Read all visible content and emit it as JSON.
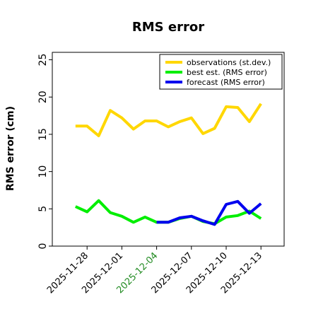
{
  "chart_data": {
    "type": "line",
    "title": "RMS error",
    "xlabel": "",
    "ylabel": "RMS error (cm)",
    "ylim": [
      0,
      26
    ],
    "yticks": [
      0,
      5,
      10,
      15,
      20,
      25
    ],
    "xlim": [
      "2025-11-25",
      "2025-12-15"
    ],
    "xticks": [
      "2025-11-28",
      "2025-12-01",
      "2025-12-04",
      "2025-12-07",
      "2025-12-10",
      "2025-12-13"
    ],
    "highlight_xtick": "2025-12-04",
    "highlight_color": "#228B22",
    "grid": false,
    "legend_position": "top-right",
    "series": [
      {
        "name": "observations (st.dev.)",
        "color": "#FFD700",
        "x": [
          "2025-11-27",
          "2025-11-28",
          "2025-11-29",
          "2025-11-30",
          "2025-12-01",
          "2025-12-02",
          "2025-12-03",
          "2025-12-04",
          "2025-12-05",
          "2025-12-06",
          "2025-12-07",
          "2025-12-08",
          "2025-12-09",
          "2025-12-10",
          "2025-12-11",
          "2025-12-12",
          "2025-12-13"
        ],
        "y": [
          16.1,
          16.1,
          14.8,
          18.2,
          17.2,
          15.7,
          16.8,
          16.8,
          16.0,
          16.7,
          17.2,
          15.1,
          15.8,
          18.7,
          18.6,
          16.7,
          19.1
        ]
      },
      {
        "name": "best est. (RMS error)",
        "color": "#00EE00",
        "x": [
          "2025-11-27",
          "2025-11-28",
          "2025-11-29",
          "2025-11-30",
          "2025-12-01",
          "2025-12-02",
          "2025-12-03",
          "2025-12-04",
          "2025-12-05",
          "2025-12-06",
          "2025-12-07",
          "2025-12-08",
          "2025-12-09",
          "2025-12-10",
          "2025-12-11",
          "2025-12-12",
          "2025-12-13"
        ],
        "y": [
          5.3,
          4.6,
          6.1,
          4.5,
          4.0,
          3.2,
          3.9,
          3.2,
          3.2,
          3.7,
          4.0,
          3.3,
          3.0,
          3.9,
          4.1,
          4.7,
          3.7
        ]
      },
      {
        "name": "forecast (RMS error)",
        "color": "#0000EE",
        "x": [
          "2025-12-04",
          "2025-12-05",
          "2025-12-06",
          "2025-12-07",
          "2025-12-08",
          "2025-12-09",
          "2025-12-10",
          "2025-12-11",
          "2025-12-12",
          "2025-12-13"
        ],
        "y": [
          3.2,
          3.2,
          3.8,
          4.0,
          3.4,
          2.9,
          5.6,
          6.0,
          4.4,
          5.7
        ]
      }
    ]
  }
}
